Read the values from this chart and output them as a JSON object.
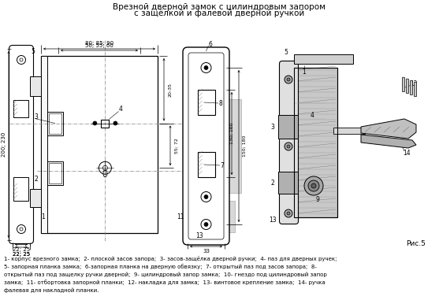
{
  "title_line1": "Врезной дверной замок с цилиндровым запором",
  "title_line2": "с защёлкой и фалевой дверной ручкой",
  "fig_label": "Рис.5",
  "caption_lines": [
    "1- корпус врезного замка;  2- плоской засов запора;  3- засов-защёлка дверной ручки;  4- паз для дверных ручек;",
    "5- запорная планка замка;  6-запорная планка на дверную обвязку;  7- открытый паз под засов запора;  8-",
    "открытый паз под защелку ручки дверной;  9- цилиндровый запор замка;  10- гнездо под цилиндровый запор",
    "замка;  11- отбортовка запорной планки;  12- накладка для замка;  13- винтовое крепление замка;  14- ручка",
    "фалевая для накладной планки."
  ],
  "bg_color": "#ffffff"
}
